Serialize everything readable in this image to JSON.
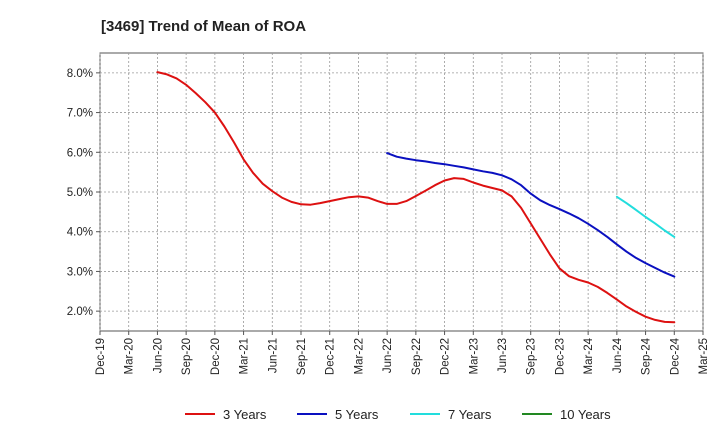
{
  "chart_data": {
    "type": "line",
    "title": "[3469]  Trend of Mean of ROA",
    "xlabel": "",
    "ylabel": "",
    "x_labels": [
      "Dec-19",
      "Mar-20",
      "Jun-20",
      "Sep-20",
      "Dec-20",
      "Mar-21",
      "Jun-21",
      "Sep-21",
      "Dec-21",
      "Mar-22",
      "Jun-22",
      "Sep-22",
      "Dec-22",
      "Mar-23",
      "Jun-23",
      "Sep-23",
      "Dec-23",
      "Mar-24",
      "Jun-24",
      "Sep-24",
      "Dec-24",
      "Mar-25"
    ],
    "y_ticks": [
      2.0,
      3.0,
      4.0,
      5.0,
      6.0,
      7.0,
      8.0
    ],
    "y_tick_labels": [
      "2.0%",
      "3.0%",
      "4.0%",
      "5.0%",
      "6.0%",
      "7.0%",
      "8.0%"
    ],
    "ylim": [
      1.5,
      8.5
    ],
    "grid": true,
    "legend_position": "bottom",
    "series": [
      {
        "name": "3 Years",
        "color": "#dd1111",
        "points": [
          [
            "Jun-20",
            8.02
          ],
          [
            "Jul-20",
            7.96
          ],
          [
            "Aug-20",
            7.86
          ],
          [
            "Sep-20",
            7.7
          ],
          [
            "Oct-20",
            7.49
          ],
          [
            "Nov-20",
            7.26
          ],
          [
            "Dec-20",
            7.0
          ],
          [
            "Jan-21",
            6.65
          ],
          [
            "Feb-21",
            6.25
          ],
          [
            "Mar-21",
            5.82
          ],
          [
            "Apr-21",
            5.48
          ],
          [
            "May-21",
            5.21
          ],
          [
            "Jun-21",
            5.02
          ],
          [
            "Jul-21",
            4.86
          ],
          [
            "Aug-21",
            4.75
          ],
          [
            "Sep-21",
            4.69
          ],
          [
            "Oct-21",
            4.68
          ],
          [
            "Nov-21",
            4.72
          ],
          [
            "Dec-21",
            4.77
          ],
          [
            "Jan-22",
            4.82
          ],
          [
            "Feb-22",
            4.87
          ],
          [
            "Mar-22",
            4.89
          ],
          [
            "Apr-22",
            4.86
          ],
          [
            "May-22",
            4.77
          ],
          [
            "Jun-22",
            4.7
          ],
          [
            "Jul-22",
            4.7
          ],
          [
            "Aug-22",
            4.77
          ],
          [
            "Sep-22",
            4.9
          ],
          [
            "Oct-22",
            5.03
          ],
          [
            "Nov-22",
            5.17
          ],
          [
            "Dec-22",
            5.29
          ],
          [
            "Jan-23",
            5.35
          ],
          [
            "Feb-23",
            5.33
          ],
          [
            "Mar-23",
            5.24
          ],
          [
            "Apr-23",
            5.16
          ],
          [
            "May-23",
            5.1
          ],
          [
            "Jun-23",
            5.04
          ],
          [
            "Jul-23",
            4.89
          ],
          [
            "Aug-23",
            4.6
          ],
          [
            "Sep-23",
            4.21
          ],
          [
            "Oct-23",
            3.82
          ],
          [
            "Nov-23",
            3.43
          ],
          [
            "Dec-23",
            3.08
          ],
          [
            "Jan-24",
            2.88
          ],
          [
            "Feb-24",
            2.79
          ],
          [
            "Mar-24",
            2.72
          ],
          [
            "Apr-24",
            2.61
          ],
          [
            "May-24",
            2.46
          ],
          [
            "Jun-24",
            2.29
          ],
          [
            "Jul-24",
            2.12
          ],
          [
            "Aug-24",
            1.98
          ],
          [
            "Sep-24",
            1.86
          ],
          [
            "Oct-24",
            1.78
          ],
          [
            "Nov-24",
            1.73
          ],
          [
            "Dec-24",
            1.72
          ]
        ]
      },
      {
        "name": "5 Years",
        "color": "#0a10c0",
        "points": [
          [
            "Jun-22",
            5.98
          ],
          [
            "Jul-22",
            5.89
          ],
          [
            "Aug-22",
            5.84
          ],
          [
            "Sep-22",
            5.8
          ],
          [
            "Oct-22",
            5.77
          ],
          [
            "Nov-22",
            5.73
          ],
          [
            "Dec-22",
            5.7
          ],
          [
            "Jan-23",
            5.66
          ],
          [
            "Feb-23",
            5.62
          ],
          [
            "Mar-23",
            5.57
          ],
          [
            "Apr-23",
            5.52
          ],
          [
            "May-23",
            5.48
          ],
          [
            "Jun-23",
            5.42
          ],
          [
            "Jul-23",
            5.32
          ],
          [
            "Aug-23",
            5.17
          ],
          [
            "Sep-23",
            4.96
          ],
          [
            "Oct-23",
            4.79
          ],
          [
            "Nov-23",
            4.67
          ],
          [
            "Dec-23",
            4.57
          ],
          [
            "Jan-24",
            4.46
          ],
          [
            "Feb-24",
            4.34
          ],
          [
            "Mar-24",
            4.2
          ],
          [
            "Apr-24",
            4.04
          ],
          [
            "May-24",
            3.87
          ],
          [
            "Jun-24",
            3.68
          ],
          [
            "Jul-24",
            3.5
          ],
          [
            "Aug-24",
            3.34
          ],
          [
            "Sep-24",
            3.21
          ],
          [
            "Oct-24",
            3.09
          ],
          [
            "Nov-24",
            2.97
          ],
          [
            "Dec-24",
            2.87
          ]
        ]
      },
      {
        "name": "7 Years",
        "color": "#22dddd",
        "points": [
          [
            "Jun-24",
            4.88
          ],
          [
            "Jul-24",
            4.72
          ],
          [
            "Aug-24",
            4.55
          ],
          [
            "Sep-24",
            4.37
          ],
          [
            "Oct-24",
            4.21
          ],
          [
            "Nov-24",
            4.03
          ],
          [
            "Dec-24",
            3.87
          ]
        ]
      },
      {
        "name": "10 Years",
        "color": "#228822",
        "points": []
      }
    ]
  }
}
